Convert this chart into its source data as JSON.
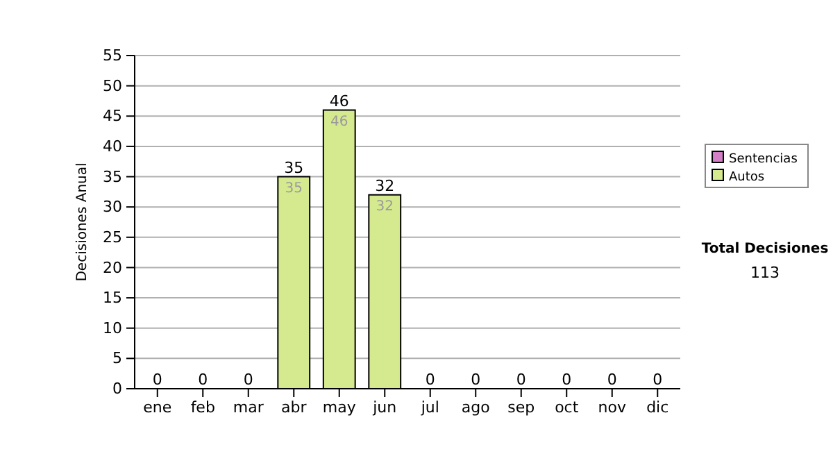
{
  "chart_data": {
    "type": "bar",
    "stacked": true,
    "ylabel": "Decisiones Anual",
    "categories": [
      "ene",
      "feb",
      "mar",
      "abr",
      "may",
      "jun",
      "jul",
      "ago",
      "sep",
      "oct",
      "nov",
      "dic"
    ],
    "series": [
      {
        "name": "Sentencias",
        "color": "#d27fc8",
        "values": [
          0,
          0,
          0,
          0,
          0,
          0,
          0,
          0,
          0,
          0,
          0,
          0
        ]
      },
      {
        "name": "Autos",
        "color": "#d5e98f",
        "values": [
          0,
          0,
          0,
          35,
          46,
          32,
          0,
          0,
          0,
          0,
          0,
          0
        ],
        "value_labels": [
          null,
          null,
          null,
          "35",
          "46",
          "32",
          null,
          null,
          null,
          null,
          null,
          null
        ]
      }
    ],
    "totals": [
      "0",
      "0",
      "0",
      "35",
      "46",
      "32",
      "0",
      "0",
      "0",
      "0",
      "0",
      "0"
    ],
    "ylim": [
      0,
      55
    ],
    "yticks": [
      0,
      5,
      10,
      15,
      20,
      25,
      30,
      35,
      40,
      45,
      50,
      55
    ],
    "grid": "y",
    "legend": "right",
    "annotations": [
      "Total Decisiones",
      "113"
    ]
  }
}
